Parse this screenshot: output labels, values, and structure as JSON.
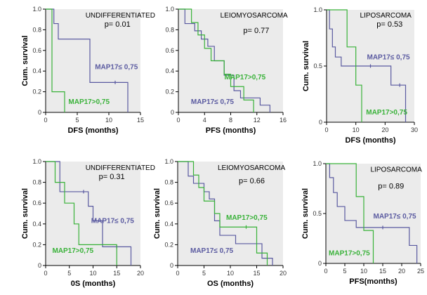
{
  "colors": {
    "plot_bg": "#ebebeb",
    "low_series": "#5a5aa0",
    "high_series": "#39b239"
  },
  "chart_data": [
    {
      "type": "line",
      "step": true,
      "title": "UNDIFFERENTIATED",
      "pvalue": "p= 0.01",
      "xlabel": "DFS (months)",
      "ylabel": "Cum. survival",
      "xlim": [
        0,
        15
      ],
      "xticks": [
        0,
        5,
        10,
        15
      ],
      "xtick_labels": [
        "0",
        "5",
        "10",
        "15"
      ],
      "ylim": [
        0,
        1
      ],
      "yticks": [
        0,
        0.2,
        0.4,
        0.6,
        0.8,
        1.0
      ],
      "ytick_labels": [
        "0",
        "0.2",
        "0.4",
        "0.6",
        "0.8",
        "1.0"
      ],
      "series": [
        {
          "name": "MAP17≤ 0,75",
          "color": "#5a5aa0",
          "x": [
            0,
            1.3,
            2,
            7,
            13
          ],
          "y": [
            1.0,
            0.86,
            0.71,
            0.29,
            0.0
          ],
          "censored": [
            [
              11,
              0.29
            ]
          ]
        },
        {
          "name": "MAP17>0,75",
          "color": "#39b239",
          "x": [
            0,
            1,
            3
          ],
          "y": [
            1.0,
            0.2,
            0.0
          ],
          "censored": []
        }
      ]
    },
    {
      "type": "line",
      "step": true,
      "title": "LEIOMYOSARCOMA",
      "pvalue": "p= 0.77",
      "xlabel": "PFS (months)",
      "ylabel": "",
      "xlim": [
        0,
        16
      ],
      "xticks": [
        0,
        4,
        8,
        12,
        16
      ],
      "xtick_labels": [
        "0",
        "4",
        "8",
        "12",
        "16"
      ],
      "ylim": [
        0,
        1
      ],
      "yticks": [
        0,
        0.2,
        0.4,
        0.6,
        0.8,
        1.0
      ],
      "ytick_labels": [
        "0",
        "0.2",
        "0.4",
        "0.6",
        "0.8",
        "1.0"
      ],
      "series": [
        {
          "name": "MAP17≤ 0,75",
          "color": "#5a5aa0",
          "x": [
            0,
            1,
            2.5,
            3.5,
            4.5,
            5.5,
            7,
            8.5,
            9.5,
            12.5,
            14
          ],
          "y": [
            1.0,
            0.86,
            0.79,
            0.71,
            0.64,
            0.5,
            0.36,
            0.21,
            0.14,
            0.07,
            0.0
          ],
          "censored": []
        },
        {
          "name": "MAP17>0,75",
          "color": "#39b239",
          "x": [
            0,
            2,
            3,
            4,
            5,
            7,
            8,
            10,
            11.5
          ],
          "y": [
            1.0,
            0.87,
            0.75,
            0.62,
            0.5,
            0.37,
            0.25,
            0.12,
            0.0
          ],
          "censored": []
        }
      ]
    },
    {
      "type": "line",
      "step": true,
      "title": "LIPOSARCOMA",
      "pvalue": "p= 0.53",
      "xlabel": "DFS (months)",
      "ylabel": "Cum. survival",
      "xlim": [
        0,
        30
      ],
      "xticks": [
        0,
        10,
        20,
        30
      ],
      "xtick_labels": [
        "0",
        "10",
        "20",
        "30"
      ],
      "ylim": [
        0,
        1
      ],
      "yticks": [
        0,
        0.5,
        1.0
      ],
      "ytick_labels": [
        "0",
        "0.5",
        "1.0"
      ],
      "series": [
        {
          "name": "MAP17≤ 0,75",
          "color": "#5a5aa0",
          "x": [
            0,
            1,
            2,
            3,
            5,
            22,
            27
          ],
          "y": [
            1.0,
            0.83,
            0.67,
            0.58,
            0.5,
            0.33,
            0.0
          ],
          "censored": [
            [
              15,
              0.5
            ],
            [
              25,
              0.33
            ]
          ]
        },
        {
          "name": "MAP17>0,75",
          "color": "#39b239",
          "x": [
            0,
            7,
            10,
            12
          ],
          "y": [
            1.0,
            0.67,
            0.33,
            0.0
          ],
          "censored": []
        }
      ]
    },
    {
      "type": "line",
      "step": true,
      "title": "UNDIFFERENTIATED",
      "pvalue": "p= 0.31",
      "xlabel": "0S (months)",
      "ylabel": "Cum. survival",
      "xlim": [
        0,
        20
      ],
      "xticks": [
        0,
        5,
        10,
        15,
        20
      ],
      "xtick_labels": [
        "0",
        "5",
        "10",
        "15",
        "20"
      ],
      "ylim": [
        0,
        1
      ],
      "yticks": [
        0,
        0.2,
        0.4,
        0.6,
        0.8,
        1.0
      ],
      "ytick_labels": [
        "0",
        "0.2",
        "0.4",
        "0.6",
        "0.8",
        "1.0"
      ],
      "series": [
        {
          "name": "MAP17≤ 0,75",
          "color": "#5a5aa0",
          "x": [
            0,
            3,
            9,
            10,
            12,
            18
          ],
          "y": [
            1.0,
            0.71,
            0.57,
            0.43,
            0.18,
            0.0
          ],
          "censored": [
            [
              8,
              0.71
            ],
            [
              15,
              0.18
            ]
          ]
        },
        {
          "name": "MAP17>0,75",
          "color": "#39b239",
          "x": [
            0,
            2,
            4,
            6,
            7,
            15
          ],
          "y": [
            1.0,
            0.8,
            0.6,
            0.4,
            0.2,
            0.0
          ],
          "censored": []
        }
      ]
    },
    {
      "type": "line",
      "step": true,
      "title": "LEIOMYOSARCOMA",
      "pvalue": "p= 0.66",
      "xlabel": "OS (months)",
      "ylabel": "Cum. survival",
      "xlim": [
        0,
        20
      ],
      "xticks": [
        0,
        5,
        10,
        15,
        20
      ],
      "xtick_labels": [
        "0",
        "5",
        "10",
        "15",
        "20"
      ],
      "ylim": [
        0,
        1
      ],
      "yticks": [
        0,
        0.2,
        0.4,
        0.6,
        0.8,
        1.0
      ],
      "ytick_labels": [
        "0",
        "0.2",
        "0.4",
        "0.6",
        "0.8",
        "1.0"
      ],
      "series": [
        {
          "name": "MAP17≤ 0,75",
          "color": "#5a5aa0",
          "x": [
            0,
            2,
            3,
            5,
            6,
            7,
            8,
            11,
            16,
            18
          ],
          "y": [
            1.0,
            0.86,
            0.79,
            0.71,
            0.64,
            0.43,
            0.29,
            0.21,
            0.07,
            0.0
          ],
          "censored": []
        },
        {
          "name": "MAP17>0,75",
          "color": "#39b239",
          "x": [
            0,
            3,
            4,
            5,
            7,
            8,
            15,
            17
          ],
          "y": [
            1.0,
            0.87,
            0.75,
            0.62,
            0.5,
            0.37,
            0.12,
            0.0
          ],
          "censored": [
            [
              13,
              0.37
            ]
          ]
        }
      ]
    },
    {
      "type": "line",
      "step": true,
      "title": "LIPOSARCOMA",
      "pvalue": "p= 0.89",
      "xlabel": "PFS(months)",
      "ylabel": "Cum. survival",
      "xlim": [
        0,
        25
      ],
      "xticks": [
        0,
        5,
        10,
        15,
        20,
        25
      ],
      "xtick_labels": [
        "0",
        "5",
        "10",
        "15",
        "20",
        "25"
      ],
      "ylim": [
        0,
        1
      ],
      "yticks": [
        0,
        0.5,
        1.0
      ],
      "ytick_labels": [
        "0",
        "0.5",
        "1.0"
      ],
      "series": [
        {
          "name": "MAP17≤ 0,75",
          "color": "#5a5aa0",
          "x": [
            0,
            1,
            2,
            3,
            5,
            8,
            22,
            24
          ],
          "y": [
            1.0,
            0.86,
            0.71,
            0.57,
            0.43,
            0.36,
            0.18,
            0.0
          ],
          "censored": [
            [
              15,
              0.36
            ]
          ]
        },
        {
          "name": "MAP17>0,75",
          "color": "#39b239",
          "x": [
            0,
            8,
            10,
            12.5
          ],
          "y": [
            1.0,
            0.67,
            0.33,
            0.0
          ],
          "censored": []
        }
      ]
    }
  ]
}
